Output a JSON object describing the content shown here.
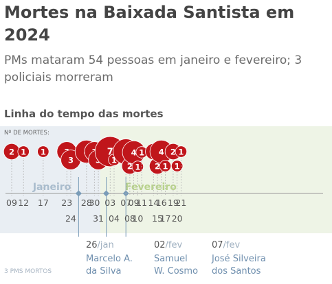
{
  "header": {
    "title": "Mortes na Baixada Santista em 2024",
    "subtitle": "PMs mataram 54 pessoas em janeiro e fevereiro; 3 policiais morreram",
    "section_title": "Linha do tempo das mortes"
  },
  "colors": {
    "death_bubble": "#c0161b",
    "january_bg": "#e9eef3",
    "february_bg": "#eef4e6",
    "police_blue": "#7a9cb8",
    "month_january": "#a9bccd",
    "month_february": "#b8d28c",
    "axis": "#999999"
  },
  "chart_data": {
    "type": "scatter",
    "ylabel": "Nº DE MORTES:",
    "months": [
      "Janeiro",
      "Fevereiro"
    ],
    "events": [
      {
        "date": "09/jan",
        "label": "09",
        "deaths": 2
      },
      {
        "date": "12/jan",
        "label": "12",
        "deaths": 1
      },
      {
        "date": "17/jan",
        "label": "17",
        "deaths": 1
      },
      {
        "date": "23/jan",
        "label": "23",
        "deaths": 3
      },
      {
        "date": "24/jan",
        "label": "24",
        "deaths": 3
      },
      {
        "date": "28/jan",
        "label": "28",
        "deaths": 4
      },
      {
        "date": "30/jan",
        "label": "30",
        "deaths": 3
      },
      {
        "date": "31/jan",
        "label": "31",
        "deaths": 3
      },
      {
        "date": "03/fev",
        "label": "03",
        "deaths": 7
      },
      {
        "date": "04/fev",
        "label": "04",
        "deaths": 1
      },
      {
        "date": "07/fev",
        "label": "07",
        "deaths": 5
      },
      {
        "date": "08/fev",
        "label": "08",
        "deaths": 2
      },
      {
        "date": "09/fev",
        "label": "09",
        "deaths": 4
      },
      {
        "date": "10/fev",
        "label": "10",
        "deaths": 1
      },
      {
        "date": "11/fev",
        "label": "11",
        "deaths": 1
      },
      {
        "date": "14/fev",
        "label": "14",
        "deaths": 2
      },
      {
        "date": "15/fev",
        "label": "15",
        "deaths": 2
      },
      {
        "date": "16/fev",
        "label": "16",
        "deaths": 4
      },
      {
        "date": "17/fev",
        "label": "17",
        "deaths": 1
      },
      {
        "date": "19/fev",
        "label": "19",
        "deaths": 2
      },
      {
        "date": "20/fev",
        "label": "20",
        "deaths": 1
      },
      {
        "date": "21/fev",
        "label": "21",
        "deaths": 1
      }
    ],
    "police_deaths_label": "3 PMS MORTOS",
    "police_deaths": [
      {
        "date": "26/jan",
        "day": "26",
        "month": "jan",
        "name_line1": "Marcelo A.",
        "name_line2": "da Silva"
      },
      {
        "date": "02/fev",
        "day": "02",
        "month": "fev",
        "name_line1": "Samuel",
        "name_line2": "W. Cosmo"
      },
      {
        "date": "07/fev",
        "day": "07",
        "month": "fev",
        "name_line1": "José Silveira",
        "name_line2": "dos Santos"
      }
    ]
  }
}
